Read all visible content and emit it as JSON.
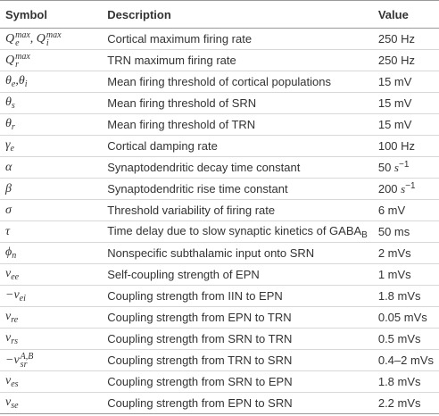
{
  "table": {
    "columns": [
      "Symbol",
      "Description",
      "Value"
    ],
    "rows": [
      [
        [
          {
            "text": "Q"
          },
          {
            "sub": "e",
            "sup": "max"
          },
          {
            "text": ", Q"
          },
          {
            "sub": "i",
            "sup": "max"
          }
        ],
        "Cortical maximum firing rate",
        "250 Hz"
      ],
      [
        [
          {
            "text": "Q"
          },
          {
            "sub": "r",
            "sup": "max"
          }
        ],
        "TRN maximum firing rate",
        "250 Hz"
      ],
      [
        [
          {
            "text": "θ"
          },
          {
            "sub": "e"
          },
          {
            "text": ",θ"
          },
          {
            "sub": "i"
          }
        ],
        "Mean firing threshold of cortical populations",
        "15 mV"
      ],
      [
        [
          {
            "text": "θ"
          },
          {
            "sub": "s"
          }
        ],
        "Mean firing threshold of SRN",
        "15 mV"
      ],
      [
        [
          {
            "text": "θ"
          },
          {
            "sub": "r"
          }
        ],
        "Mean firing threshold of TRN",
        "15 mV"
      ],
      [
        [
          {
            "text": "γ"
          },
          {
            "sub": "e"
          }
        ],
        "Cortical damping rate",
        "100 Hz"
      ],
      [
        [
          {
            "text": "α"
          }
        ],
        "Synaptodendritic decay time constant",
        [
          {
            "text": "50 "
          },
          {
            "text": "s",
            "style": "italic"
          },
          {
            "sup": "−1"
          }
        ]
      ],
      [
        [
          {
            "text": "β"
          }
        ],
        "Synaptodendritic rise time constant",
        [
          {
            "text": "200 "
          },
          {
            "text": "s",
            "style": "italic"
          },
          {
            "sup": "−1"
          }
        ]
      ],
      [
        [
          {
            "text": "σ"
          }
        ],
        "Threshold variability of firing rate",
        "6 mV"
      ],
      [
        [
          {
            "text": "τ"
          }
        ],
        [
          {
            "text": "Time delay due to slow synaptic kinetics of GABA"
          },
          {
            "sub": "B"
          }
        ],
        "50 ms"
      ],
      [
        [
          {
            "text": "ϕ"
          },
          {
            "sub": "n"
          }
        ],
        "Nonspecific subthalamic input onto SRN",
        "2 mVs"
      ],
      [
        [
          {
            "text": "ν"
          },
          {
            "sub": "ee"
          }
        ],
        "Self-coupling strength of EPN",
        "1 mVs"
      ],
      [
        [
          {
            "text": "−ν"
          },
          {
            "sub": "ei"
          }
        ],
        "Coupling strength from IIN to EPN",
        "1.8 mVs"
      ],
      [
        [
          {
            "text": "ν"
          },
          {
            "sub": "re"
          }
        ],
        "Coupling strength from EPN to TRN",
        "0.05 mVs"
      ],
      [
        [
          {
            "text": "ν"
          },
          {
            "sub": "rs"
          }
        ],
        "Coupling strength from SRN to TRN",
        "0.5 mVs"
      ],
      [
        [
          {
            "text": "−ν"
          },
          {
            "sub": "sr",
            "sup": "A,B"
          }
        ],
        "Coupling strength from TRN to SRN",
        "0.4–2 mVs"
      ],
      [
        [
          {
            "text": "ν"
          },
          {
            "sub": "es"
          }
        ],
        "Coupling strength from SRN to EPN",
        "1.8 mVs"
      ],
      [
        [
          {
            "text": "ν"
          },
          {
            "sub": "se"
          }
        ],
        "Coupling strength from EPN to SRN",
        "2.2 mVs"
      ]
    ]
  }
}
